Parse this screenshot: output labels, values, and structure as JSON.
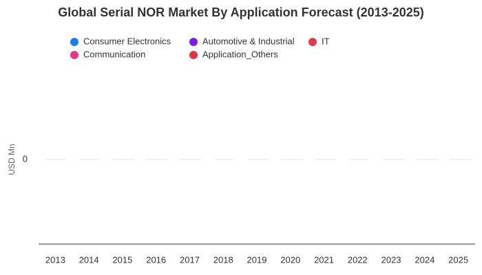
{
  "chart_data": {
    "type": "bar",
    "stacked": true,
    "title": "Global Serial NOR Market By Application Forecast (2013-2025)",
    "y_label": "USD Mn",
    "categories": [
      "2013",
      "2014",
      "2015",
      "2016",
      "2017",
      "2018",
      "2019",
      "2020",
      "2021",
      "2022",
      "2023",
      "2024",
      "2025"
    ],
    "series": [
      {
        "name": "Consumer Electronics",
        "color": "#1a7fe8",
        "values": [
          0,
          0,
          0,
          0,
          0,
          0,
          0,
          0,
          0,
          0,
          0,
          0,
          0
        ]
      },
      {
        "name": "Automotive & Industrial",
        "color": "#7a1fe6",
        "values": [
          0,
          0,
          0,
          0,
          0,
          0,
          0,
          0,
          0,
          0,
          0,
          0,
          0
        ]
      },
      {
        "name": "IT",
        "color": "#e03a4f",
        "values": [
          0,
          0,
          0,
          0,
          0,
          0,
          0,
          0,
          0,
          0,
          0,
          0,
          0
        ]
      },
      {
        "name": "Communication",
        "color": "#e5398a",
        "values": [
          0,
          0,
          0,
          0,
          0,
          0,
          0,
          0,
          0,
          0,
          0,
          0,
          0
        ]
      },
      {
        "name": "Application_Others",
        "color": "#dc3545",
        "values": [
          0,
          0,
          0,
          0,
          0,
          0,
          0,
          0,
          0,
          0,
          0,
          0,
          0
        ]
      }
    ],
    "ylim": [
      -1,
      1
    ],
    "yticks": [
      0
    ],
    "grid": true
  }
}
